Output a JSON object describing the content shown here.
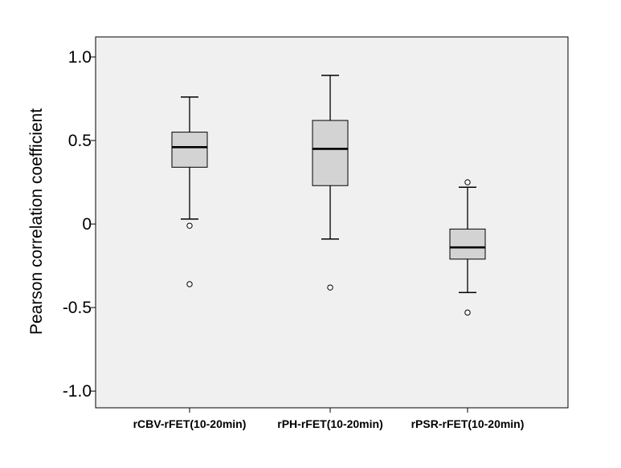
{
  "chart_data": {
    "type": "boxplot",
    "title": "",
    "xlabel": "",
    "ylabel": "Pearson correlation coefficient",
    "ylim": [
      -1.1,
      1.12
    ],
    "yticks": [
      {
        "value": 1.0,
        "label": "1.0"
      },
      {
        "value": 0.5,
        "label": "0.5"
      },
      {
        "value": 0.0,
        "label": "0"
      },
      {
        "value": -0.5,
        "label": "-0.5"
      },
      {
        "value": -1.0,
        "label": "-1.0"
      }
    ],
    "grid": false,
    "colors": {
      "plot_background": "#f0f0f0",
      "box_fill": "#d3d3d3",
      "stroke": "#000000"
    },
    "categories": [
      "rCBV-rFET(10-20min)",
      "rPH-rFET(10-20min)",
      "rPSR-rFET(10-20min)"
    ],
    "boxes": [
      {
        "whisker_low": 0.03,
        "q1": 0.34,
        "median": 0.46,
        "q3": 0.55,
        "whisker_high": 0.76,
        "outliers": [
          -0.01,
          -0.36
        ]
      },
      {
        "whisker_low": -0.09,
        "q1": 0.23,
        "median": 0.45,
        "q3": 0.62,
        "whisker_high": 0.89,
        "outliers": [
          -0.38
        ]
      },
      {
        "whisker_low": -0.41,
        "q1": -0.21,
        "median": -0.14,
        "q3": -0.03,
        "whisker_high": 0.22,
        "outliers": [
          0.25,
          -0.53
        ]
      }
    ]
  }
}
